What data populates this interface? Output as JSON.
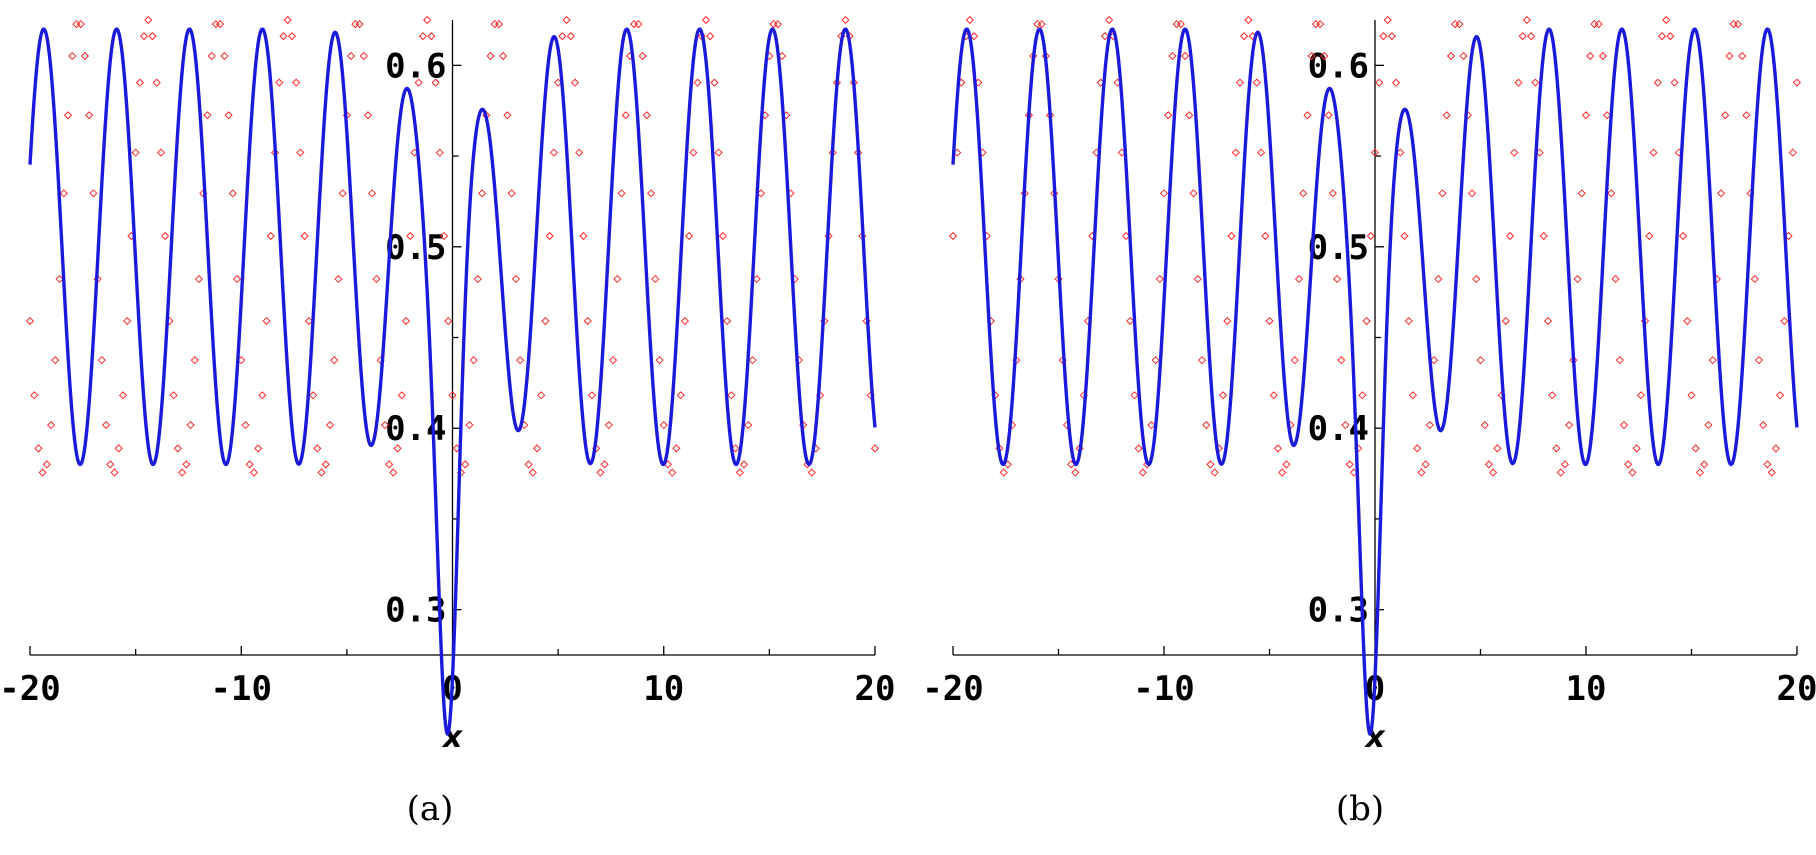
{
  "figure": {
    "captions": [
      "(a)",
      "(b)"
    ]
  },
  "colors": {
    "curve": "#1a1adb",
    "points": "#ff2a2a",
    "axis": "#000000"
  },
  "chart_data": [
    {
      "type": "line",
      "panel": "(a)",
      "xlabel": "x",
      "ylabel": "",
      "xlim": [
        -20,
        20
      ],
      "ylim": [
        0.275,
        0.625
      ],
      "x_ticks": [
        -20,
        -10,
        0,
        10,
        20
      ],
      "x_tick_labels": [
        "-20",
        "-10",
        "0",
        "10",
        "20"
      ],
      "y_ticks": [
        0.3,
        0.4,
        0.5,
        0.6
      ],
      "y_tick_labels": [
        "0.3",
        "0.4",
        "0.5",
        "0.6"
      ],
      "grid": false,
      "series": [
        {
          "role": "solid-curve",
          "style": "solid",
          "baseline": 0.5,
          "amplitude": 0.12,
          "period": 3.45,
          "phase_x": 18.6,
          "well_center": -0.2,
          "well_depth": 0.205,
          "well_width": 0.65,
          "envelope_width": 3.0
        },
        {
          "role": "diamond-markers",
          "style": "markers",
          "baseline": 0.5,
          "amplitude": 0.125,
          "period": 3.3,
          "phase_x": 18.6,
          "x_start": -20,
          "x_end": 20,
          "spacing": 0.2
        }
      ]
    },
    {
      "type": "line",
      "panel": "(b)",
      "xlabel": "x",
      "ylabel": "",
      "xlim": [
        -20,
        20
      ],
      "ylim": [
        0.275,
        0.625
      ],
      "x_ticks": [
        -20,
        -10,
        0,
        10,
        20
      ],
      "x_tick_labels": [
        "-20",
        "-10",
        "0",
        "10",
        "20"
      ],
      "y_ticks": [
        0.3,
        0.4,
        0.5,
        0.6
      ],
      "y_tick_labels": [
        "0.3",
        "0.4",
        "0.5",
        "0.6"
      ],
      "grid": false,
      "series": [
        {
          "role": "solid-curve",
          "style": "solid",
          "baseline": 0.5,
          "amplitude": 0.12,
          "period": 3.45,
          "phase_x": 18.6,
          "well_center": -0.2,
          "well_depth": 0.205,
          "well_width": 0.65,
          "envelope_width": 3.0
        },
        {
          "role": "diamond-markers",
          "style": "markers",
          "baseline": 0.5,
          "amplitude": 0.125,
          "period": 3.3,
          "phase_x": -19.2,
          "x_start": -20,
          "x_end": 20,
          "spacing": 0.2
        }
      ]
    }
  ]
}
